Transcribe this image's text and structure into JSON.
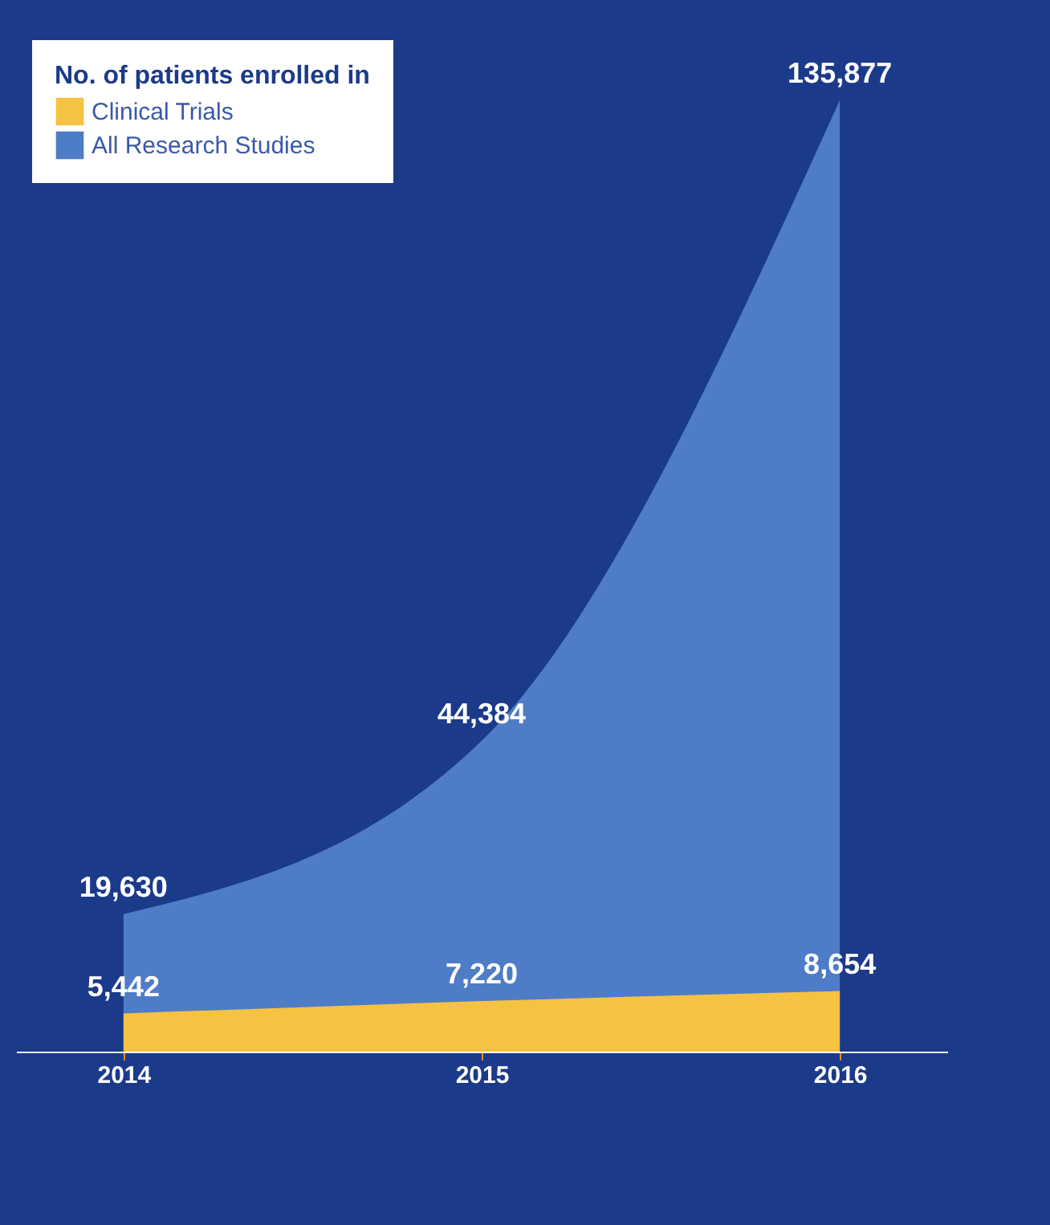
{
  "chart_data": {
    "type": "area",
    "legend_title": "No. of patients enrolled in",
    "categories": [
      "2014",
      "2015",
      "2016"
    ],
    "series": [
      {
        "name": "Clinical Trials",
        "color": "#f5c242",
        "values": [
          5442,
          7220,
          8654
        ],
        "value_labels": [
          "5,442",
          "7,220",
          "8,654"
        ]
      },
      {
        "name": "All Research Studies",
        "color": "#4f7cc6",
        "values": [
          19630,
          44384,
          135877
        ],
        "value_labels": [
          "19,630",
          "44,384",
          "135,877"
        ]
      }
    ],
    "legend": "top left",
    "grid": false
  }
}
